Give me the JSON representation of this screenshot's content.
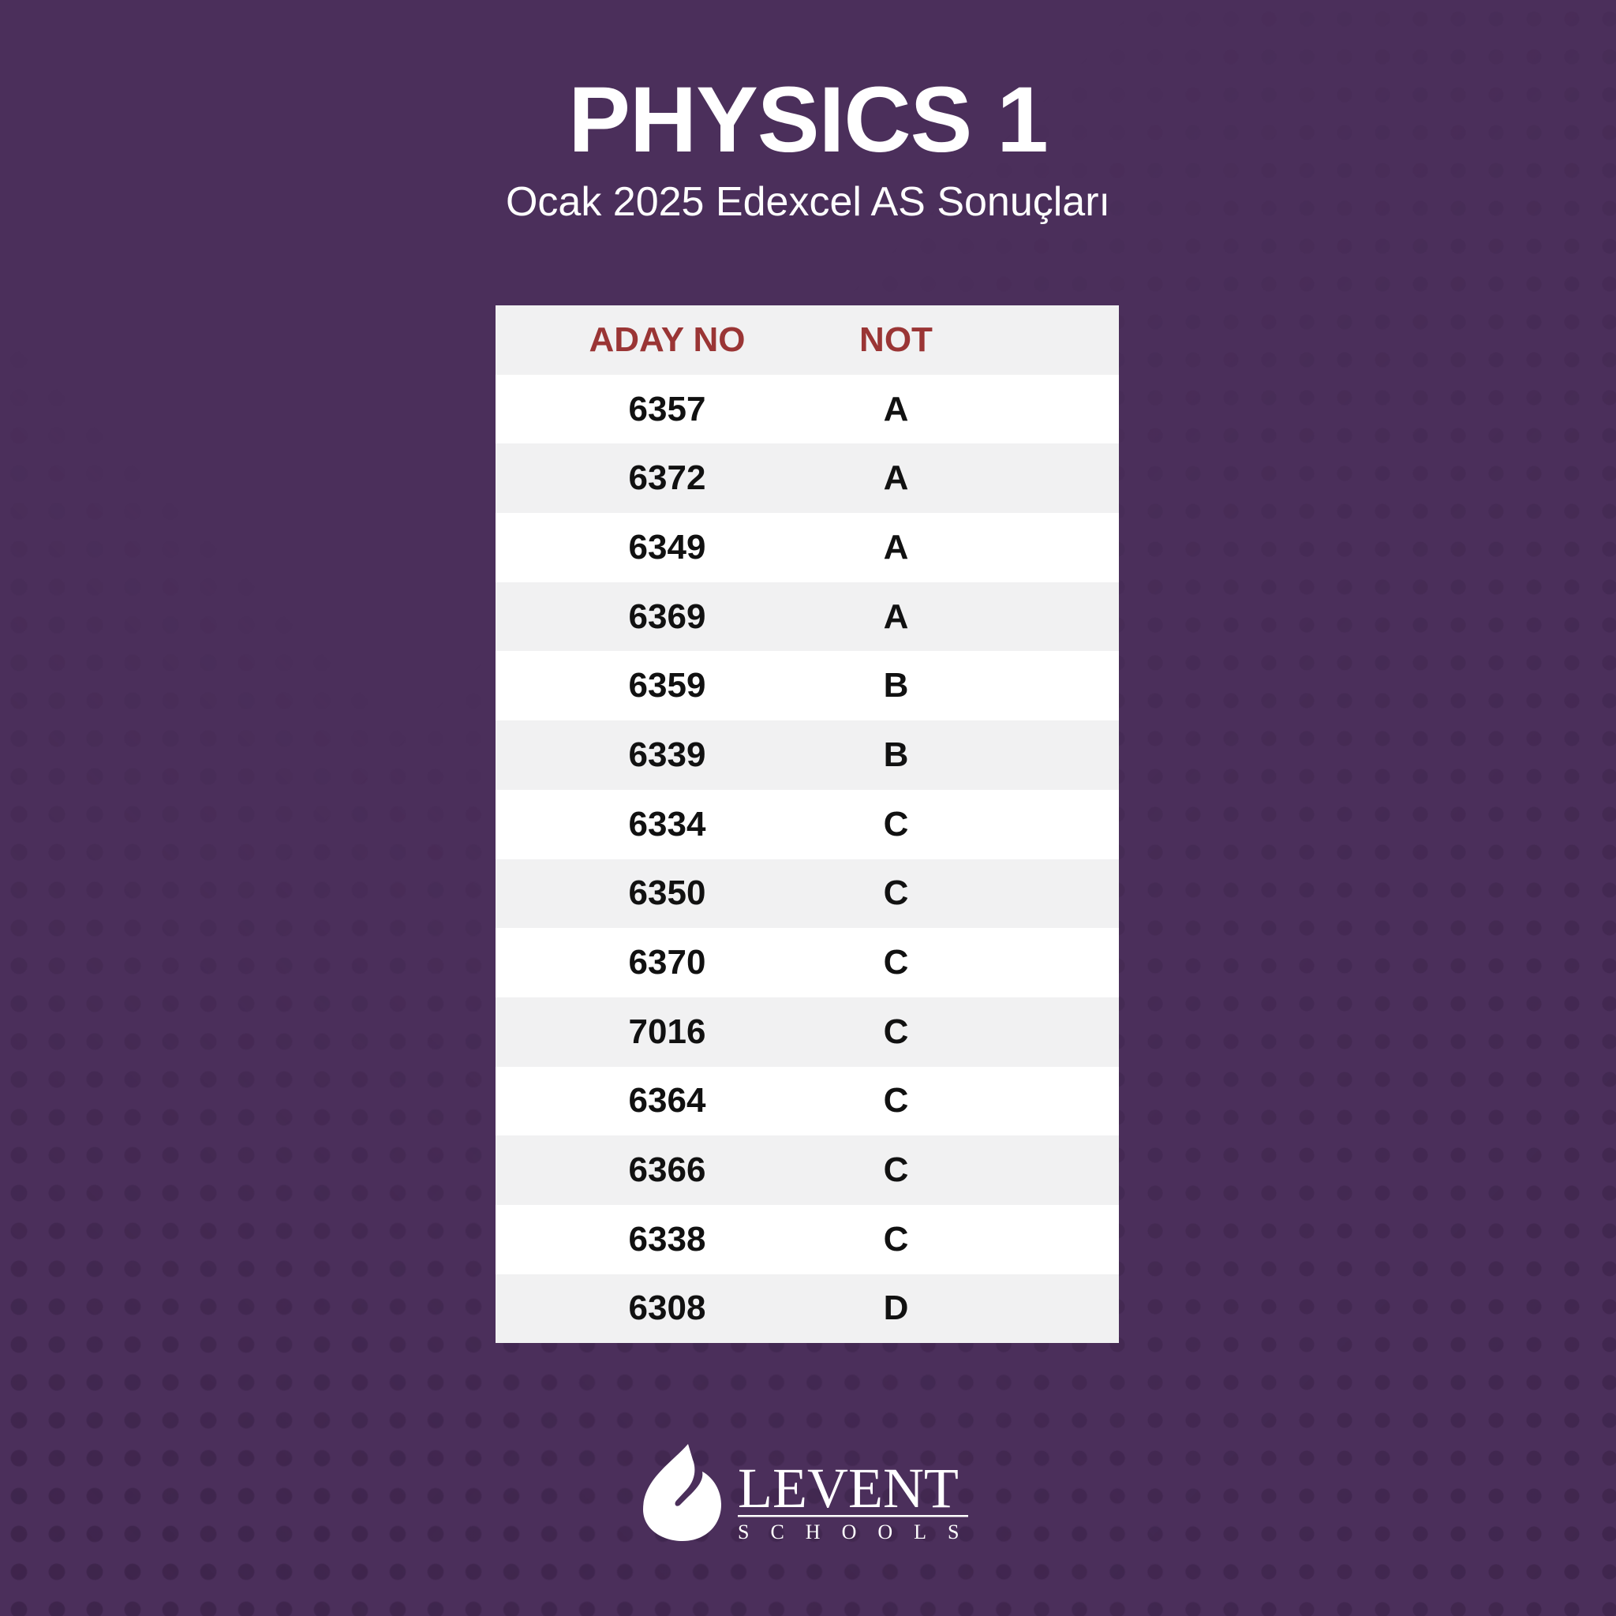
{
  "title": "PHYSICS 1",
  "subtitle": "Ocak 2025 Edexcel AS Sonuçları",
  "table": {
    "headers": [
      "ADAY NO",
      "NOT"
    ],
    "rows": [
      [
        "6357",
        "A"
      ],
      [
        "6372",
        "A"
      ],
      [
        "6349",
        "A"
      ],
      [
        "6369",
        "A"
      ],
      [
        "6359",
        "B"
      ],
      [
        "6339",
        "B"
      ],
      [
        "6334",
        "C"
      ],
      [
        "6350",
        "C"
      ],
      [
        "6370",
        "C"
      ],
      [
        "7016",
        "C"
      ],
      [
        "6364",
        "C"
      ],
      [
        "6366",
        "C"
      ],
      [
        "6338",
        "C"
      ],
      [
        "6308",
        "D"
      ]
    ]
  },
  "logo": {
    "name": "LEVENT",
    "tagline": "SCHOOLS"
  },
  "colors": {
    "background": "#4b2f5b",
    "header_text": "#9a3535"
  }
}
